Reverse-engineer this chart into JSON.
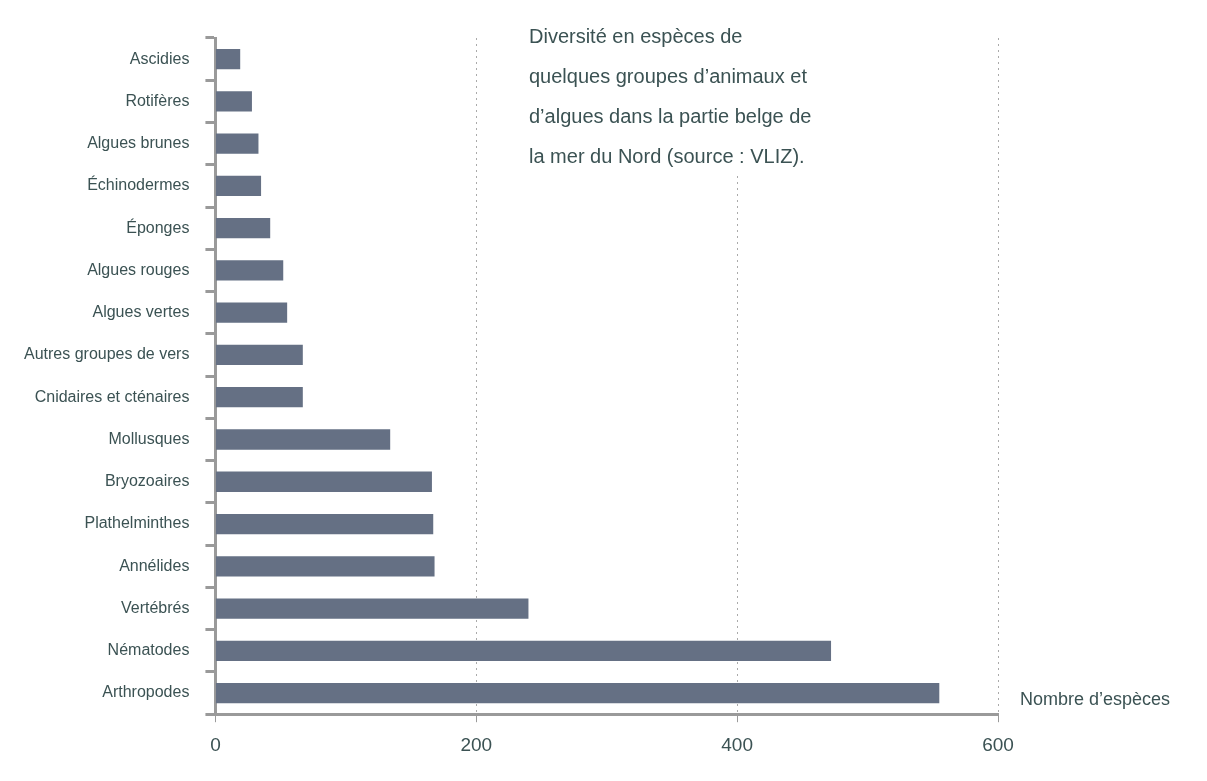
{
  "chart_data": {
    "type": "bar",
    "orientation": "horizontal",
    "title": "Diversité en espèces de quelques groupes d’animaux et d’algues dans la partie belge de la mer du Nord (source : VLIZ).",
    "xlabel": "Nombre d’espèces",
    "categories": [
      "Ascidies",
      "Rotifères",
      "Algues brunes",
      "Échinodermes",
      "Éponges",
      "Algues rouges",
      "Algues vertes",
      "Autres groupes de vers",
      "Cnidaires et cténaires",
      "Mollusques",
      "Bryozoaires",
      "Plathelminthes",
      "Annélides",
      "Vertébrés",
      "Nématodes",
      "Arthropodes"
    ],
    "values": [
      19,
      28,
      33,
      35,
      42,
      52,
      55,
      67,
      67,
      134,
      166,
      167,
      168,
      240,
      472,
      555
    ],
    "color": "#657084",
    "xlim": [
      0,
      600
    ],
    "xticks": [
      0,
      200,
      400,
      600
    ],
    "grid": "x",
    "legend": false
  }
}
